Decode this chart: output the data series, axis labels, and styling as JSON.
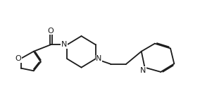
{
  "background_color": "#ffffff",
  "line_color": "#1a1a1a",
  "line_width": 1.3,
  "font_size": 8.0,
  "figsize": [
    2.84,
    1.53
  ],
  "dpi": 100,
  "xlim": [
    0.18,
    2.85
  ],
  "ylim": [
    0.2,
    1.05
  ]
}
